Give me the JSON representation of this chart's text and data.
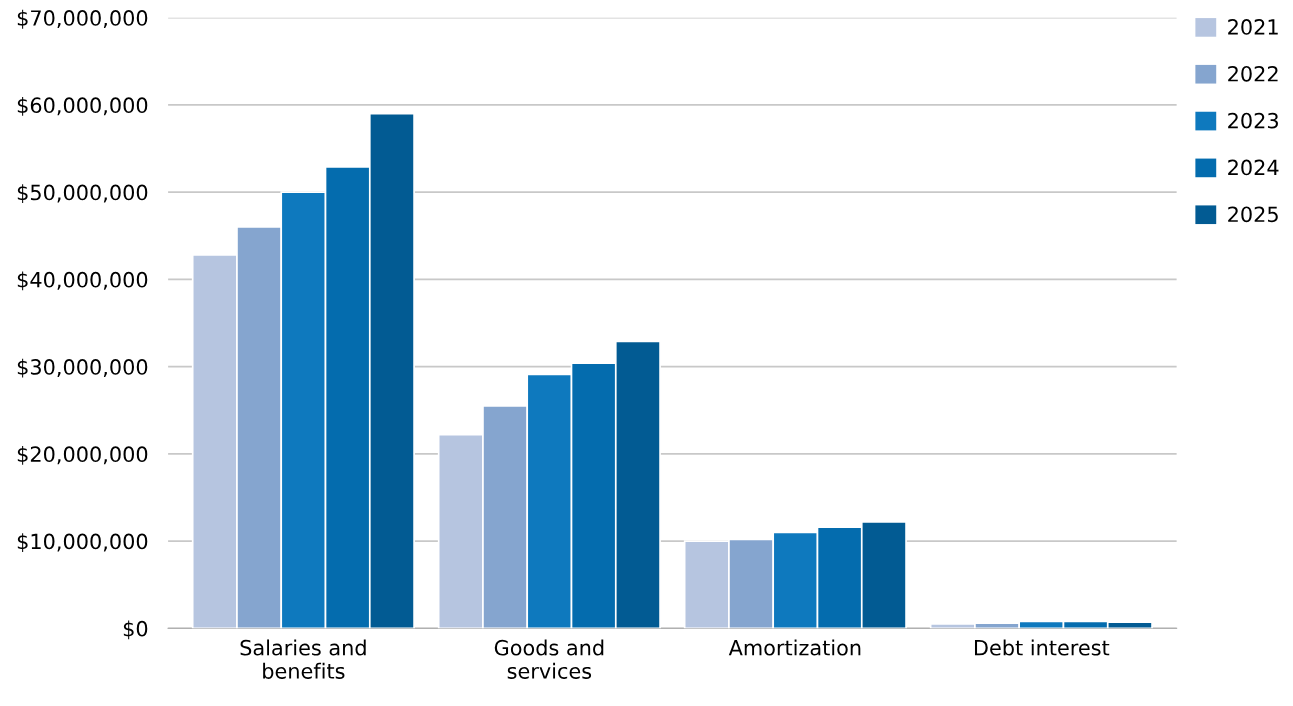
{
  "chart_data": {
    "type": "bar",
    "categories": [
      "Salaries and\nbenefits",
      "Goods and\nservices",
      "Amortization",
      "Debt interest"
    ],
    "series": [
      {
        "name": "2021",
        "color": "#b6c5e0",
        "values": [
          42800000,
          22200000,
          10000000,
          500000
        ]
      },
      {
        "name": "2022",
        "color": "#85a5cf",
        "values": [
          46000000,
          25500000,
          10200000,
          600000
        ]
      },
      {
        "name": "2023",
        "color": "#0e79be",
        "values": [
          50000000,
          29100000,
          11000000,
          800000
        ]
      },
      {
        "name": "2024",
        "color": "#046cae",
        "values": [
          52900000,
          30400000,
          11600000,
          800000
        ]
      },
      {
        "name": "2025",
        "color": "#025b93",
        "values": [
          59000000,
          32900000,
          12200000,
          700000
        ]
      }
    ],
    "ylim": [
      0,
      70000000
    ],
    "yticks": [
      {
        "value": 0,
        "label": "$0"
      },
      {
        "value": 10000000,
        "label": "$10,000,000"
      },
      {
        "value": 20000000,
        "label": "$20,000,000"
      },
      {
        "value": 30000000,
        "label": "$30,000,000"
      },
      {
        "value": 40000000,
        "label": "$40,000,000"
      },
      {
        "value": 50000000,
        "label": "$50,000,000"
      },
      {
        "value": 60000000,
        "label": "$60,000,000"
      },
      {
        "value": 70000000,
        "label": "$70,000,000"
      }
    ],
    "grid": "y",
    "legend": "right"
  }
}
